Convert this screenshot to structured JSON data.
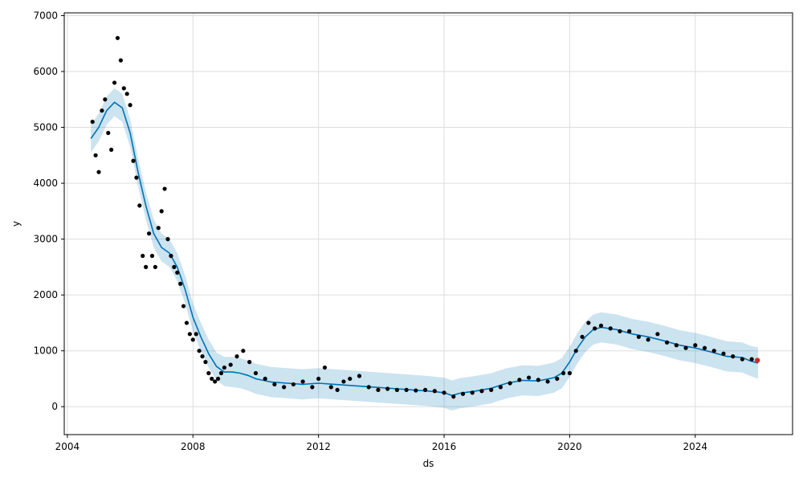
{
  "chart_data": {
    "type": "line",
    "title": "",
    "xlabel": "ds",
    "ylabel": "y",
    "grid": true,
    "xlim": [
      2003.9,
      2027.1
    ],
    "ylim": [
      -500,
      7050
    ],
    "x_ticks": [
      2004,
      2008,
      2012,
      2016,
      2020,
      2024
    ],
    "x_tick_labels": [
      "2004",
      "2008",
      "2012",
      "2016",
      "2020",
      "2024"
    ],
    "y_ticks": [
      0,
      1000,
      2000,
      3000,
      4000,
      5000,
      6000,
      7000
    ],
    "y_tick_labels": [
      "0",
      "1000",
      "2000",
      "3000",
      "4000",
      "5000",
      "6000",
      "7000"
    ],
    "colors": {
      "observed": "#000000",
      "forecast": "#0072b2",
      "interval": "#0072b2",
      "latest": "#d62728",
      "grid": "#dddddd"
    },
    "series": [
      {
        "kind": "forecast",
        "x": [
          2004.75,
          2005.0,
          2005.25,
          2005.5,
          2005.75,
          2006.0,
          2006.25,
          2006.5,
          2006.75,
          2007.0,
          2007.25,
          2007.5,
          2007.75,
          2008.0,
          2008.25,
          2008.5,
          2008.75,
          2009.0,
          2009.25,
          2009.5,
          2009.75,
          2010.0,
          2010.5,
          2011.0,
          2011.5,
          2012.0,
          2012.5,
          2013.0,
          2013.5,
          2014.0,
          2014.5,
          2015.0,
          2015.5,
          2016.0,
          2016.25,
          2016.5,
          2017.0,
          2017.5,
          2018.0,
          2018.5,
          2019.0,
          2019.5,
          2019.75,
          2020.0,
          2020.25,
          2020.5,
          2020.75,
          2021.0,
          2021.5,
          2022.0,
          2022.5,
          2023.0,
          2023.5,
          2024.0,
          2024.5,
          2025.0,
          2025.5,
          2025.75,
          2026.0
        ],
        "yhat": [
          4800,
          5000,
          5300,
          5450,
          5350,
          4900,
          4200,
          3600,
          3100,
          2850,
          2750,
          2500,
          2100,
          1600,
          1250,
          950,
          720,
          620,
          620,
          600,
          560,
          500,
          440,
          420,
          400,
          420,
          400,
          380,
          360,
          340,
          320,
          300,
          280,
          250,
          200,
          240,
          280,
          330,
          420,
          470,
          460,
          520,
          600,
          800,
          1050,
          1250,
          1380,
          1420,
          1380,
          1300,
          1250,
          1180,
          1100,
          1050,
          980,
          900,
          880,
          820,
          780
        ],
        "lower": [
          4550,
          4750,
          5050,
          5200,
          5100,
          4650,
          3950,
          3350,
          2850,
          2600,
          2500,
          2250,
          1850,
          1350,
          1000,
          700,
          470,
          370,
          350,
          330,
          290,
          230,
          170,
          150,
          130,
          150,
          130,
          110,
          90,
          70,
          50,
          30,
          10,
          -20,
          -70,
          -30,
          10,
          60,
          150,
          200,
          190,
          250,
          330,
          530,
          780,
          980,
          1110,
          1150,
          1110,
          1030,
          980,
          910,
          830,
          780,
          710,
          630,
          610,
          550,
          500
        ],
        "upper": [
          5050,
          5250,
          5550,
          5700,
          5600,
          5150,
          4450,
          3850,
          3350,
          3100,
          3000,
          2750,
          2350,
          1850,
          1500,
          1200,
          970,
          890,
          890,
          870,
          830,
          770,
          710,
          690,
          670,
          690,
          670,
          650,
          630,
          610,
          590,
          570,
          550,
          520,
          470,
          510,
          550,
          600,
          690,
          740,
          730,
          790,
          870,
          1070,
          1320,
          1520,
          1650,
          1690,
          1650,
          1570,
          1520,
          1450,
          1370,
          1320,
          1250,
          1170,
          1150,
          1090,
          1060
        ]
      },
      {
        "kind": "observed",
        "x": [
          2004.8,
          2004.9,
          2005.0,
          2005.1,
          2005.2,
          2005.3,
          2005.4,
          2005.5,
          2005.6,
          2005.7,
          2005.8,
          2005.9,
          2006.0,
          2006.1,
          2006.2,
          2006.3,
          2006.4,
          2006.5,
          2006.6,
          2006.7,
          2006.8,
          2006.9,
          2007.0,
          2007.1,
          2007.2,
          2007.3,
          2007.4,
          2007.5,
          2007.6,
          2007.7,
          2007.8,
          2007.9,
          2008.0,
          2008.1,
          2008.2,
          2008.3,
          2008.4,
          2008.5,
          2008.6,
          2008.7,
          2008.8,
          2008.9,
          2009.0,
          2009.2,
          2009.4,
          2009.6,
          2009.8,
          2010.0,
          2010.3,
          2010.6,
          2010.9,
          2011.2,
          2011.5,
          2011.8,
          2012.0,
          2012.2,
          2012.4,
          2012.6,
          2012.8,
          2013.0,
          2013.3,
          2013.6,
          2013.9,
          2014.2,
          2014.5,
          2014.8,
          2015.1,
          2015.4,
          2015.7,
          2016.0,
          2016.3,
          2016.6,
          2016.9,
          2017.2,
          2017.5,
          2017.8,
          2018.1,
          2018.4,
          2018.7,
          2019.0,
          2019.3,
          2019.6,
          2019.8,
          2020.0,
          2020.2,
          2020.4,
          2020.6,
          2020.8,
          2021.0,
          2021.3,
          2021.6,
          2021.9,
          2022.2,
          2022.5,
          2022.8,
          2023.1,
          2023.4,
          2023.7,
          2024.0,
          2024.3,
          2024.6,
          2024.9,
          2025.2,
          2025.5,
          2025.8
        ],
        "y": [
          5100,
          4500,
          4200,
          5300,
          5500,
          4900,
          4600,
          5800,
          6600,
          6200,
          5700,
          5600,
          5400,
          4400,
          4100,
          3600,
          2700,
          2500,
          3100,
          2700,
          2500,
          3200,
          3500,
          3900,
          3000,
          2700,
          2500,
          2400,
          2200,
          1800,
          1500,
          1300,
          1200,
          1300,
          1000,
          900,
          800,
          600,
          500,
          450,
          500,
          600,
          700,
          750,
          900,
          1000,
          800,
          600,
          500,
          400,
          350,
          400,
          450,
          350,
          500,
          700,
          350,
          300,
          450,
          500,
          550,
          350,
          300,
          320,
          300,
          300,
          290,
          300,
          280,
          250,
          180,
          230,
          250,
          280,
          300,
          350,
          420,
          480,
          520,
          480,
          450,
          500,
          600,
          600,
          1000,
          1250,
          1500,
          1400,
          1450,
          1400,
          1350,
          1350,
          1250,
          1200,
          1300,
          1150,
          1100,
          1050,
          1100,
          1050,
          1000,
          950,
          900,
          850,
          850
        ]
      },
      {
        "kind": "latest",
        "x": [
          2025.98
        ],
        "y": [
          830
        ]
      }
    ]
  }
}
